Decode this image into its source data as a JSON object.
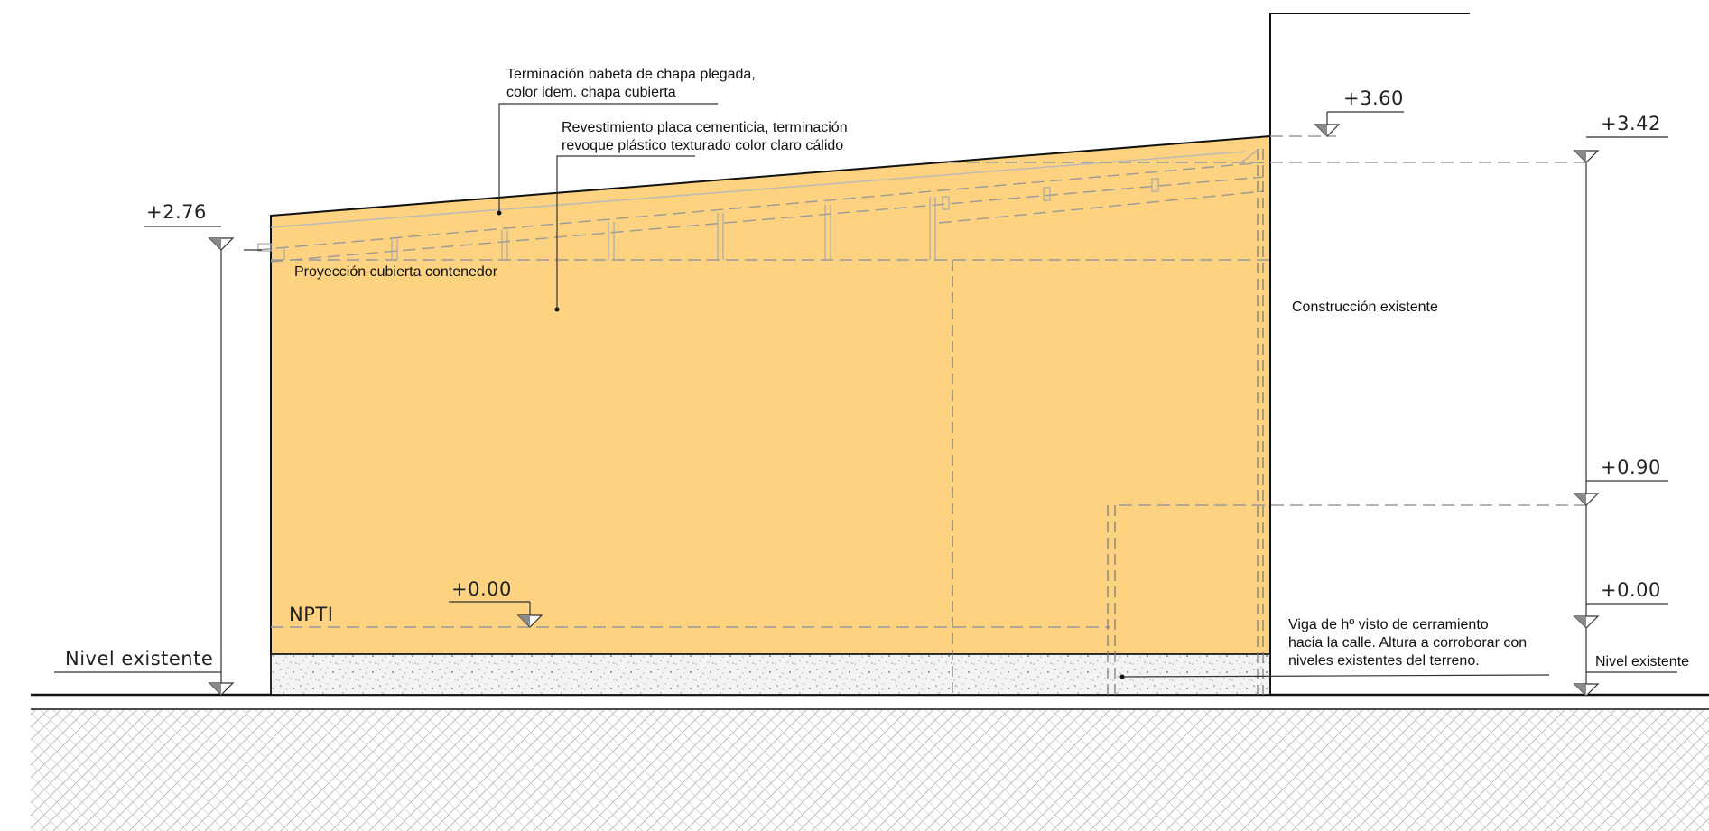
{
  "annotations": {
    "flashing_line1": "Terminación babeta de chapa plegada,",
    "flashing_line2": "color idem. chapa cubierta",
    "cladding_line1": "Revestimiento placa cementicia, terminación",
    "cladding_line2": "revoque plástico texturado color claro cálido",
    "roof_projection": "Proyección cubierta contenedor",
    "existing_building": "Construcción existente",
    "beam_line1": "Viga de hº visto de cerramiento",
    "beam_line2": "hacia la calle. Altura a corroborar con",
    "beam_line3": "niveles existentes del terreno.",
    "npti": "NPTI",
    "existing_level_left": "Nivel  existente",
    "existing_level_right": "Nivel existente"
  },
  "levels": {
    "left_top": "+2.76",
    "roof_peak": "+3.60",
    "right_top": "+3.42",
    "right_mid": "+0.90",
    "right_zero": "+0.00",
    "npti_zero": "+0.00"
  },
  "colors": {
    "wall_fill": "#fdd280",
    "concrete_fill": "#f1f1f1",
    "line": "#111111",
    "dash": "#9a9a9a",
    "level_marker": "#8a8a8a"
  },
  "icons": {
    "level_marker": "inverted-triangle-level-icon",
    "ground_hatch": "diagonal-hatch-pattern"
  }
}
